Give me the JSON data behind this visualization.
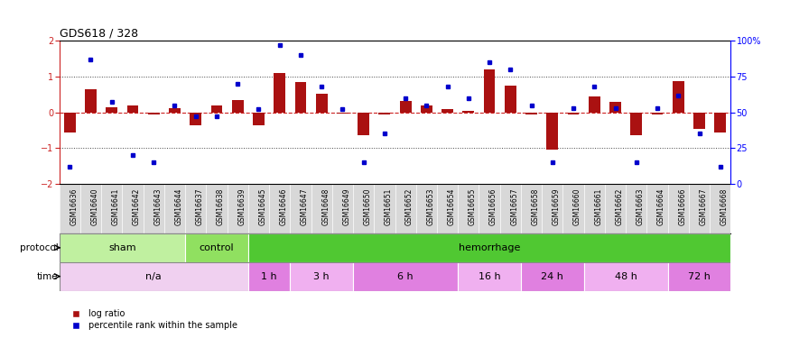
{
  "title": "GDS618 / 328",
  "samples": [
    "GSM16636",
    "GSM16640",
    "GSM16641",
    "GSM16642",
    "GSM16643",
    "GSM16644",
    "GSM16637",
    "GSM16638",
    "GSM16639",
    "GSM16645",
    "GSM16646",
    "GSM16647",
    "GSM16648",
    "GSM16649",
    "GSM16650",
    "GSM16651",
    "GSM16652",
    "GSM16653",
    "GSM16654",
    "GSM16655",
    "GSM16656",
    "GSM16657",
    "GSM16658",
    "GSM16659",
    "GSM16660",
    "GSM16661",
    "GSM16662",
    "GSM16663",
    "GSM16664",
    "GSM16666",
    "GSM16667",
    "GSM16668"
  ],
  "log_ratio": [
    -0.55,
    0.65,
    0.15,
    0.18,
    -0.07,
    0.12,
    -0.35,
    0.2,
    0.35,
    -0.35,
    1.1,
    0.85,
    0.52,
    -0.03,
    -0.65,
    -0.05,
    0.32,
    0.18,
    0.1,
    0.05,
    1.2,
    0.75,
    -0.07,
    -1.05,
    -0.05,
    0.45,
    0.3,
    -0.65,
    -0.05,
    0.87,
    -0.45,
    -0.55
  ],
  "percentile": [
    12,
    87,
    57,
    20,
    15,
    55,
    47,
    47,
    70,
    52,
    97,
    90,
    68,
    52,
    15,
    35,
    60,
    55,
    68,
    60,
    85,
    80,
    55,
    15,
    53,
    68,
    53,
    15,
    53,
    62,
    35,
    12
  ],
  "protocol_groups": [
    {
      "label": "sham",
      "start": 0,
      "end": 5,
      "color": "#c0f0a0"
    },
    {
      "label": "control",
      "start": 6,
      "end": 8,
      "color": "#90e060"
    },
    {
      "label": "hemorrhage",
      "start": 9,
      "end": 31,
      "color": "#50c832"
    }
  ],
  "time_groups": [
    {
      "label": "n/a",
      "start": 0,
      "end": 8,
      "color": "#f0d0f0"
    },
    {
      "label": "1 h",
      "start": 9,
      "end": 10,
      "color": "#e080e0"
    },
    {
      "label": "3 h",
      "start": 11,
      "end": 13,
      "color": "#f0b0f0"
    },
    {
      "label": "6 h",
      "start": 14,
      "end": 18,
      "color": "#e080e0"
    },
    {
      "label": "16 h",
      "start": 19,
      "end": 21,
      "color": "#f0b0f0"
    },
    {
      "label": "24 h",
      "start": 22,
      "end": 24,
      "color": "#e080e0"
    },
    {
      "label": "48 h",
      "start": 25,
      "end": 28,
      "color": "#f0b0f0"
    },
    {
      "label": "72 h",
      "start": 29,
      "end": 31,
      "color": "#e080e0"
    }
  ],
  "bar_color": "#aa1111",
  "dot_color": "#0000cc",
  "zero_line_color": "#cc2222",
  "dotted_line_color": "#444444",
  "ylim": [
    -2,
    2
  ],
  "yticks": [
    -2,
    -1,
    0,
    1,
    2
  ],
  "y2ticks": [
    0,
    25,
    50,
    75,
    100
  ],
  "y2ticklabels": [
    "0",
    "25",
    "50",
    "75",
    "100%"
  ],
  "xtick_bg": "#d8d8d8"
}
